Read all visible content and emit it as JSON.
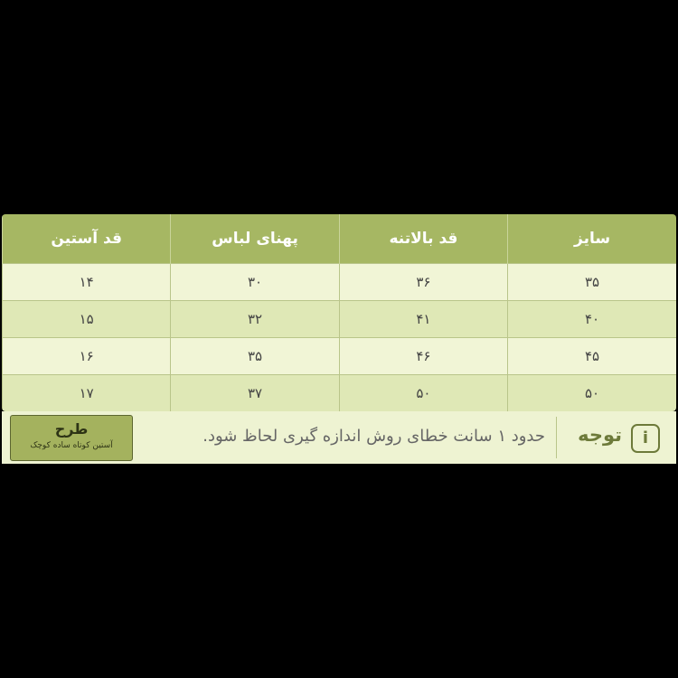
{
  "table": {
    "header": [
      "سایز",
      "قد بالاتنه",
      "پهنای لباس",
      "قد آستین"
    ],
    "rows": [
      [
        "۳۵",
        "۳۶",
        "۳۰",
        "۱۴"
      ],
      [
        "۴۰",
        "۴۱",
        "۳۲",
        "۱۵"
      ],
      [
        "۴۵",
        "۴۶",
        "۳۵",
        "۱۶"
      ],
      [
        "۵۰",
        "۵۰",
        "۳۷",
        "۱۷"
      ]
    ]
  },
  "note": {
    "label": "توجه",
    "text": "حدود ۱ سانت خطای روش اندازه گیری لحاظ شود."
  },
  "badge": {
    "title": "طرح",
    "subtitle": "آستین کوتاه ساده کوچک"
  }
}
